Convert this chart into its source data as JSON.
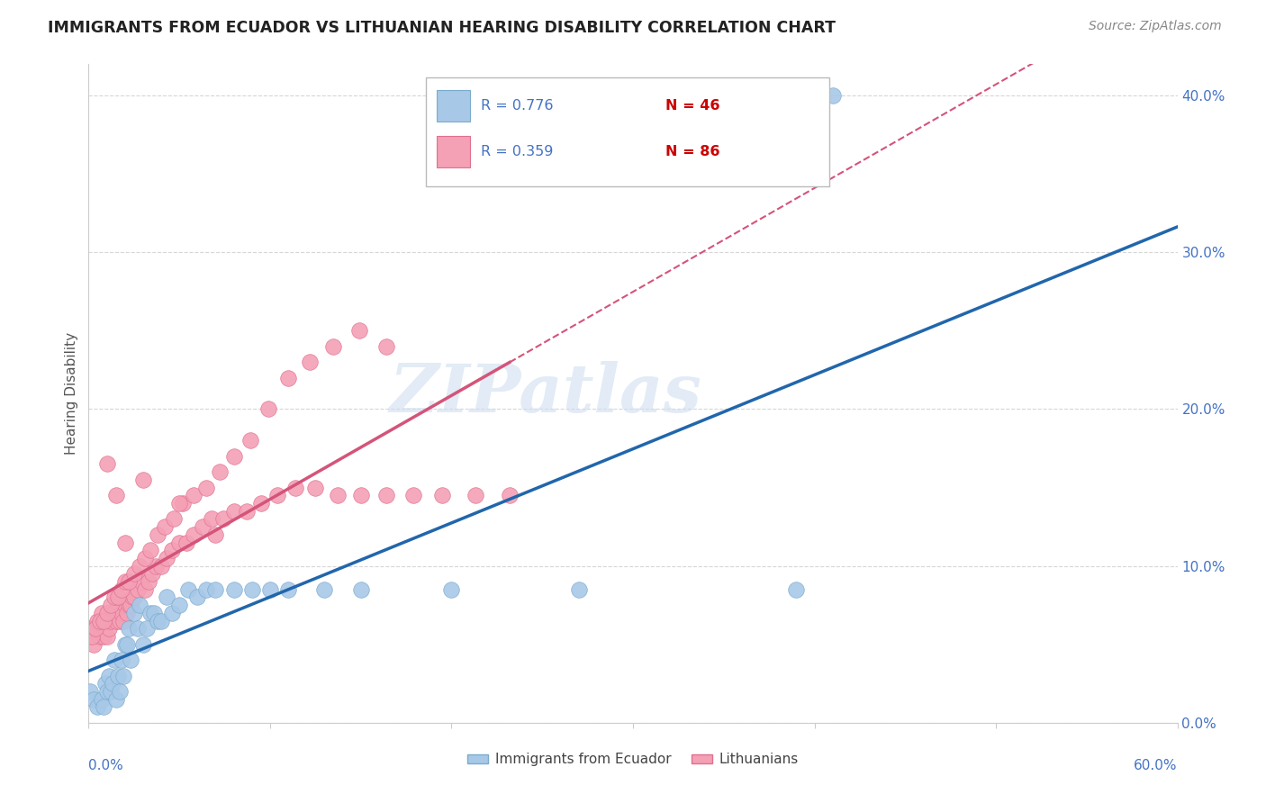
{
  "title": "IMMIGRANTS FROM ECUADOR VS LITHUANIAN HEARING DISABILITY CORRELATION CHART",
  "source": "Source: ZipAtlas.com",
  "ylabel": "Hearing Disability",
  "legend1_r": "R = 0.776",
  "legend1_n": "N = 46",
  "legend2_r": "R = 0.359",
  "legend2_n": "N = 86",
  "blue_scatter_color": "#a8c8e8",
  "blue_scatter_edge": "#7aabcc",
  "pink_scatter_color": "#f4a0b5",
  "pink_scatter_edge": "#e07090",
  "blue_line_color": "#2166ac",
  "pink_line_color": "#d4547a",
  "r_text_color": "#4472c4",
  "n_text_color": "#cc0000",
  "title_color": "#222222",
  "source_color": "#888888",
  "ylabel_color": "#555555",
  "watermark_color": "#d0dff0",
  "tick_label_color": "#4472c4",
  "grid_color": "#cccccc",
  "xlim": [
    0.0,
    0.6
  ],
  "ylim": [
    0.0,
    0.42
  ],
  "ecuador_x": [
    0.001,
    0.003,
    0.005,
    0.007,
    0.008,
    0.009,
    0.01,
    0.011,
    0.012,
    0.013,
    0.014,
    0.015,
    0.016,
    0.017,
    0.018,
    0.019,
    0.02,
    0.021,
    0.022,
    0.023,
    0.025,
    0.027,
    0.028,
    0.03,
    0.032,
    0.034,
    0.036,
    0.038,
    0.04,
    0.043,
    0.046,
    0.05,
    0.055,
    0.06,
    0.065,
    0.07,
    0.08,
    0.09,
    0.1,
    0.11,
    0.13,
    0.15,
    0.2,
    0.27,
    0.39,
    0.41
  ],
  "ecuador_y": [
    0.02,
    0.015,
    0.01,
    0.015,
    0.01,
    0.025,
    0.02,
    0.03,
    0.02,
    0.025,
    0.04,
    0.015,
    0.03,
    0.02,
    0.04,
    0.03,
    0.05,
    0.05,
    0.06,
    0.04,
    0.07,
    0.06,
    0.075,
    0.05,
    0.06,
    0.07,
    0.07,
    0.065,
    0.065,
    0.08,
    0.07,
    0.075,
    0.085,
    0.08,
    0.085,
    0.085,
    0.085,
    0.085,
    0.085,
    0.085,
    0.085,
    0.085,
    0.085,
    0.085,
    0.085,
    0.4
  ],
  "lithuanian_x": [
    0.001,
    0.002,
    0.003,
    0.004,
    0.005,
    0.006,
    0.007,
    0.008,
    0.009,
    0.01,
    0.011,
    0.012,
    0.013,
    0.014,
    0.015,
    0.016,
    0.017,
    0.018,
    0.019,
    0.02,
    0.021,
    0.022,
    0.023,
    0.024,
    0.025,
    0.027,
    0.029,
    0.031,
    0.033,
    0.035,
    0.037,
    0.04,
    0.043,
    0.046,
    0.05,
    0.054,
    0.058,
    0.063,
    0.068,
    0.074,
    0.08,
    0.087,
    0.095,
    0.104,
    0.114,
    0.125,
    0.137,
    0.15,
    0.164,
    0.179,
    0.195,
    0.213,
    0.232,
    0.002,
    0.004,
    0.006,
    0.008,
    0.01,
    0.012,
    0.014,
    0.016,
    0.018,
    0.02,
    0.022,
    0.025,
    0.028,
    0.031,
    0.034,
    0.038,
    0.042,
    0.047,
    0.052,
    0.058,
    0.065,
    0.072,
    0.08,
    0.089,
    0.099,
    0.11,
    0.122,
    0.135,
    0.149,
    0.164,
    0.01,
    0.015,
    0.02,
    0.03,
    0.05,
    0.07
  ],
  "lithuanian_y": [
    0.06,
    0.055,
    0.05,
    0.06,
    0.065,
    0.055,
    0.07,
    0.055,
    0.065,
    0.055,
    0.06,
    0.065,
    0.07,
    0.07,
    0.065,
    0.075,
    0.065,
    0.07,
    0.065,
    0.075,
    0.07,
    0.075,
    0.075,
    0.08,
    0.08,
    0.085,
    0.09,
    0.085,
    0.09,
    0.095,
    0.1,
    0.1,
    0.105,
    0.11,
    0.115,
    0.115,
    0.12,
    0.125,
    0.13,
    0.13,
    0.135,
    0.135,
    0.14,
    0.145,
    0.15,
    0.15,
    0.145,
    0.145,
    0.145,
    0.145,
    0.145,
    0.145,
    0.145,
    0.055,
    0.06,
    0.065,
    0.065,
    0.07,
    0.075,
    0.08,
    0.08,
    0.085,
    0.09,
    0.09,
    0.095,
    0.1,
    0.105,
    0.11,
    0.12,
    0.125,
    0.13,
    0.14,
    0.145,
    0.15,
    0.16,
    0.17,
    0.18,
    0.2,
    0.22,
    0.23,
    0.24,
    0.25,
    0.24,
    0.165,
    0.145,
    0.115,
    0.155,
    0.14,
    0.12
  ]
}
